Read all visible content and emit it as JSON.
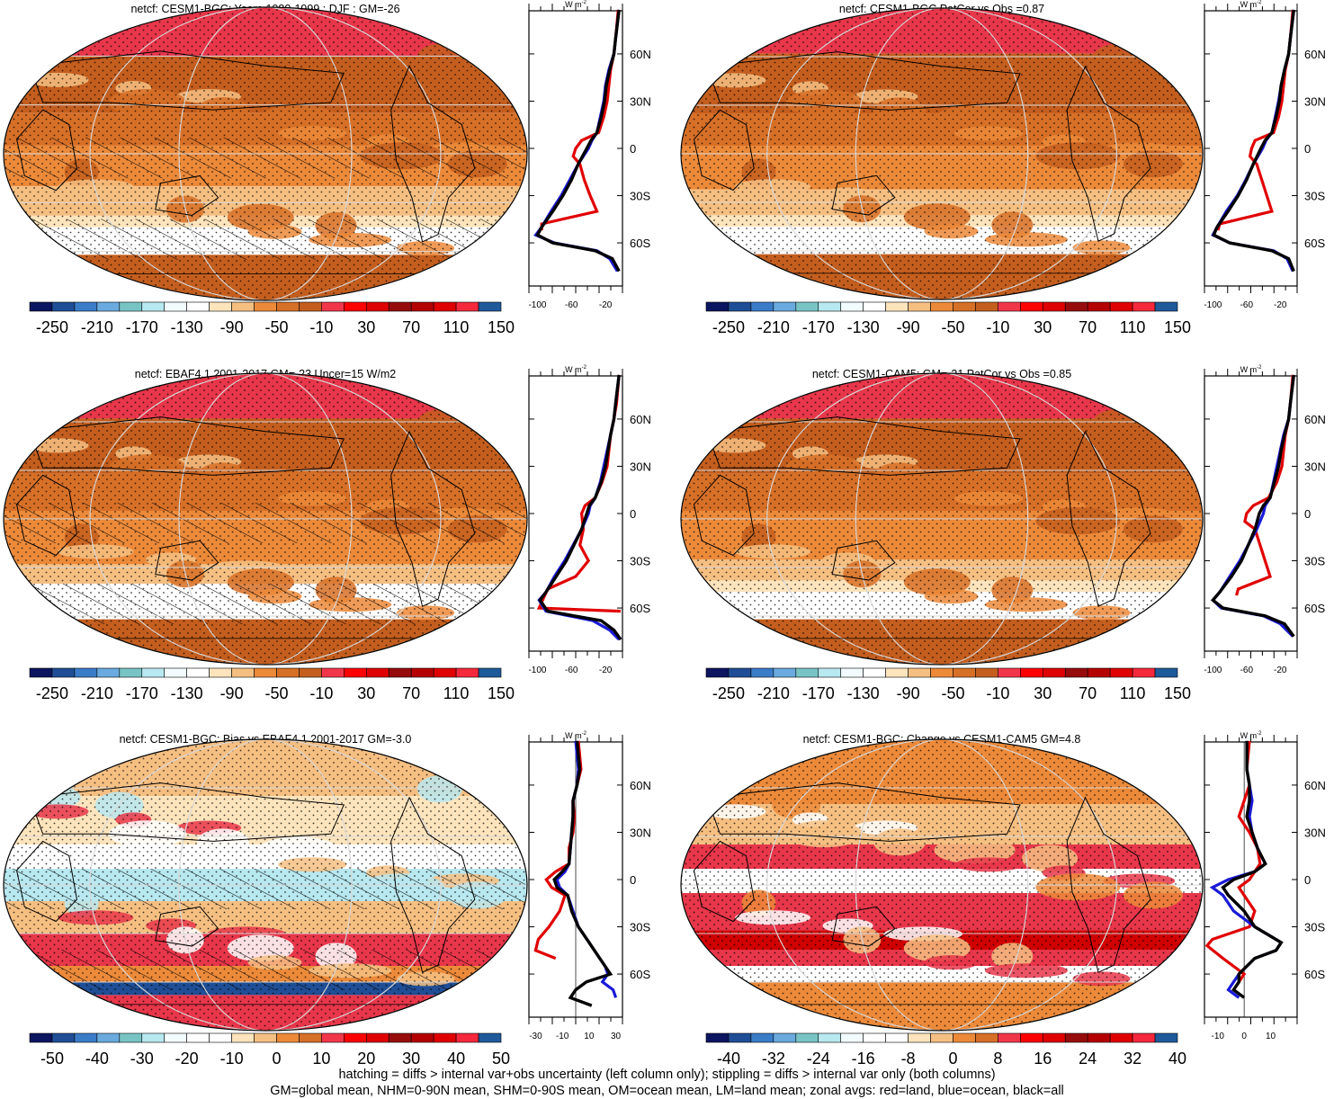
{
  "panels": [
    {
      "title": "netcf: CESM1-BGC: Years 1980-1999 : DJF : GM=-26",
      "labels": [
        "-250",
        "-210",
        "-170",
        "-130",
        "-90",
        "-50",
        "-10",
        "30",
        "70",
        "110",
        "150"
      ],
      "xticks": [
        "-100",
        "-60",
        "-20"
      ]
    },
    {
      "title": "netcf: CESM1-BGC PatCor vs Obs =0.87",
      "labels": [
        "-250",
        "-210",
        "-170",
        "-130",
        "-90",
        "-50",
        "-10",
        "30",
        "70",
        "110",
        "150"
      ],
      "xticks": [
        "-100",
        "-60",
        "-20"
      ]
    },
    {
      "title": "netcf: EBAF4.1 2001-2017 GM=-23 Uncer=15 W/m2",
      "labels": [
        "-250",
        "-210",
        "-170",
        "-130",
        "-90",
        "-50",
        "-10",
        "30",
        "70",
        "110",
        "150"
      ],
      "xticks": [
        "-100",
        "-60",
        "-20"
      ]
    },
    {
      "title": "netcf: CESM1-CAM5: GM=-31 PatCor vs Obs =0.85",
      "labels": [
        "-250",
        "-210",
        "-170",
        "-130",
        "-90",
        "-50",
        "-10",
        "30",
        "70",
        "110",
        "150"
      ],
      "xticks": [
        "-100",
        "-60",
        "-20"
      ]
    },
    {
      "title": "netcf: CESM1-BGC: Bias vs EBAF4.1 2001-2017 GM=-3.0",
      "labels": [
        "-50",
        "-40",
        "-30",
        "-20",
        "-10",
        "0",
        "10",
        "20",
        "30",
        "40",
        "50"
      ],
      "xticks": [
        "-30",
        "-10",
        "10",
        "30"
      ]
    },
    {
      "title": "netcf: CESM1-BGC: Change vs CESM1-CAM5 GM=4.8",
      "labels": [
        "-40",
        "-32",
        "-24",
        "-16",
        "-8",
        "0",
        "8",
        "16",
        "24",
        "32",
        "40"
      ],
      "xticks": [
        "-10",
        "0",
        "10"
      ]
    }
  ],
  "lat_labels": [
    "60N",
    "30N",
    "0",
    "30S",
    "60S"
  ],
  "units": "W m",
  "units_exp": "-2",
  "colors": {
    "abs": [
      "#0b1560",
      "#1f4e96",
      "#3a7cc8",
      "#6aaade",
      "#78c4c4",
      "#b8e8f0",
      "#f2fbfd",
      "#ffffff",
      "#fde4bc",
      "#f6bf82",
      "#ec8a3a",
      "#d77027",
      "#c45e1e",
      "#f2364a",
      "#ff0000",
      "#df0000",
      "#960c0c",
      "#b50000",
      "#e00000",
      "#f5283c",
      "#1e5a9a"
    ],
    "diff": [
      "#0b1560",
      "#1f4e96",
      "#3a7cc8",
      "#6aaade",
      "#78c4c4",
      "#b8e8f0",
      "#f2fbfd",
      "#ffffff",
      "#ffffff",
      "#fde4bc",
      "#f6bf82",
      "#ec8a3a",
      "#d77027",
      "#f2364a",
      "#ff0000",
      "#df0000",
      "#960c0c",
      "#b50000",
      "#e00000",
      "#f5283c",
      "#1e5a9a"
    ],
    "land": "#e10000",
    "ocean": "#1a1ad8",
    "all": "#000000"
  },
  "footer": {
    "line1": "hatching = diffs > internal var+obs uncertainty (left column only); stippling = diffs > internal var only (both columns)",
    "line2": "GM=global mean, NHM=0-90N mean, SHM=0-90S mean, OM=ocean mean, LM=land mean; zonal avgs: red=land, blue=ocean, black=all"
  }
}
